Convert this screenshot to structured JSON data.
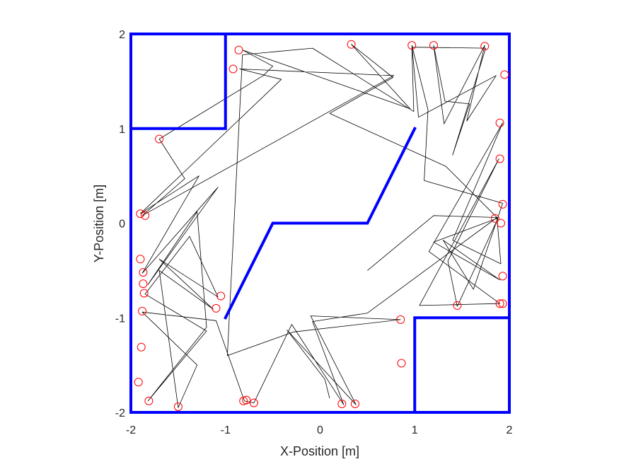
{
  "chart_data": {
    "type": "scatter",
    "title": "",
    "xlabel": "X-Position [m]",
    "ylabel": "Y-Position [m]",
    "xlim": [
      -2,
      2
    ],
    "ylim": [
      -2,
      2
    ],
    "xticks": [
      "-2",
      "-1",
      "0",
      "1",
      "2"
    ],
    "yticks": [
      "-2",
      "-1",
      "0",
      "1",
      "2"
    ],
    "grid": false,
    "colors": {
      "walls": "#0000ff",
      "path": "#000000",
      "markers": "#ff0000"
    },
    "walls": [
      {
        "name": "outer-boundary",
        "points": [
          [
            -2,
            2
          ],
          [
            2,
            2
          ],
          [
            2,
            -2
          ],
          [
            -2,
            -2
          ],
          [
            -2,
            2
          ]
        ]
      },
      {
        "name": "top-left-block",
        "points": [
          [
            -2,
            1
          ],
          [
            -1,
            1
          ],
          [
            -1,
            2
          ]
        ]
      },
      {
        "name": "bottom-right-block",
        "points": [
          [
            1,
            -2
          ],
          [
            1,
            -1
          ],
          [
            2,
            -1
          ]
        ]
      },
      {
        "name": "center-zigzag",
        "points": [
          [
            -1,
            -1
          ],
          [
            -0.5,
            0
          ],
          [
            0.5,
            0
          ],
          [
            1,
            1
          ]
        ]
      }
    ],
    "path": [
      [
        0.5,
        -0.5
      ],
      [
        1.2,
        0.08
      ],
      [
        1.87,
        0.06
      ],
      [
        0.5,
        -0.95
      ],
      [
        -0.08,
        -1.04
      ],
      [
        0.25,
        -1.92
      ],
      [
        -0.3,
        -1.07
      ],
      [
        -0.7,
        -1.9
      ],
      [
        -0.8,
        -1.88
      ],
      [
        -1.1,
        -1.03
      ],
      [
        -1.88,
        -0.94
      ],
      [
        -1.3,
        -1.5
      ],
      [
        -1.5,
        -1.95
      ],
      [
        -1.7,
        -0.5
      ],
      [
        -1.13,
        -0.91
      ],
      [
        -1.7,
        -0.38
      ],
      [
        -1.08,
        -0.78
      ],
      [
        -1.38,
        -0.14
      ],
      [
        -1.85,
        -0.75
      ],
      [
        -1.2,
        -1.14
      ],
      [
        -1.82,
        -1.88
      ],
      [
        -1.2,
        -1.1
      ],
      [
        -1.3,
        0.12
      ],
      [
        -1.82,
        -0.65
      ],
      [
        -1.08,
        0.38
      ],
      [
        -1.88,
        -0.53
      ],
      [
        -1.28,
        0.5
      ],
      [
        -1.9,
        0.1
      ],
      [
        -0.41,
        1.52
      ],
      [
        -0.85,
        1.63
      ],
      [
        0.78,
        1.56
      ],
      [
        -1.88,
        0.08
      ],
      [
        -1.43,
        0.47
      ],
      [
        -1.7,
        0.89
      ],
      [
        -0.6,
        1.56
      ],
      [
        -0.5,
        1.66
      ],
      [
        -0.82,
        1.83
      ],
      [
        0.95,
        1.21
      ],
      [
        0.33,
        1.89
      ],
      [
        0.77,
        1.54
      ],
      [
        0.1,
        1.16
      ],
      [
        1.33,
        0.6
      ],
      [
        1.88,
        0.05
      ],
      [
        1.45,
        -0.88
      ],
      [
        1.35,
        -0.4
      ],
      [
        1.89,
        0.68
      ],
      [
        1.05,
        -0.87
      ],
      [
        1.9,
        -0.85
      ],
      [
        1.15,
        -0.3
      ],
      [
        1.93,
        1.06
      ],
      [
        1.4,
        -0.18
      ],
      [
        1.91,
        -0.43
      ],
      [
        1.87,
        0.05
      ],
      [
        1.2,
        -0.2
      ],
      [
        1.9,
        -0.6
      ],
      [
        1.3,
        -0.18
      ],
      [
        1.62,
        -0.7
      ],
      [
        1.93,
        0.21
      ],
      [
        1.1,
        0.45
      ],
      [
        1.14,
        1.2
      ],
      [
        0.97,
        1.88
      ],
      [
        1.04,
        1.12
      ],
      [
        1.86,
        1.56
      ],
      [
        1.55,
        1.08
      ],
      [
        1.74,
        1.88
      ],
      [
        1.31,
        1.05
      ],
      [
        1.2,
        1.88
      ],
      [
        1.32,
        1.29
      ],
      [
        1.58,
        1.26
      ],
      [
        1.4,
        0.72
      ],
      [
        1.75,
        1.85
      ],
      [
        0.97,
        1.86
      ],
      [
        0.99,
        1.18
      ],
      [
        -0.08,
        1.85
      ],
      [
        -0.82,
        1.78
      ],
      [
        -0.98,
        -1.4
      ],
      [
        -0.28,
        -1.15
      ],
      [
        0.85,
        -1.02
      ],
      [
        -0.1,
        -0.98
      ],
      [
        0.38,
        -1.92
      ],
      [
        -0.35,
        -1.13
      ],
      [
        0.05,
        -1.65
      ],
      [
        0.1,
        -1.85
      ]
    ],
    "markers": [
      [
        0.33,
        1.89
      ],
      [
        0.97,
        1.88
      ],
      [
        1.2,
        1.88
      ],
      [
        1.74,
        1.87
      ],
      [
        1.95,
        1.57
      ],
      [
        1.9,
        1.06
      ],
      [
        1.9,
        0.68
      ],
      [
        1.93,
        0.2
      ],
      [
        1.85,
        0.05
      ],
      [
        1.91,
        0.0
      ],
      [
        1.93,
        -0.56
      ],
      [
        1.45,
        -0.87
      ],
      [
        1.9,
        -0.85
      ],
      [
        1.93,
        -0.85
      ],
      [
        0.85,
        -1.02
      ],
      [
        0.86,
        -1.48
      ],
      [
        0.37,
        -1.91
      ],
      [
        0.23,
        -1.91
      ],
      [
        -0.7,
        -1.9
      ],
      [
        -0.78,
        -1.87
      ],
      [
        -0.81,
        -1.88
      ],
      [
        -1.5,
        -1.94
      ],
      [
        -1.81,
        -1.88
      ],
      [
        -1.92,
        -1.68
      ],
      [
        -1.89,
        -1.31
      ],
      [
        -1.88,
        -0.93
      ],
      [
        -1.86,
        -0.74
      ],
      [
        -1.87,
        -0.64
      ],
      [
        -1.87,
        -0.52
      ],
      [
        -1.9,
        -0.38
      ],
      [
        -1.1,
        -0.9
      ],
      [
        -1.05,
        -0.77
      ],
      [
        -1.9,
        0.1
      ],
      [
        -1.85,
        0.08
      ],
      [
        -1.7,
        0.89
      ],
      [
        -0.92,
        1.63
      ],
      [
        -0.86,
        1.83
      ]
    ]
  }
}
